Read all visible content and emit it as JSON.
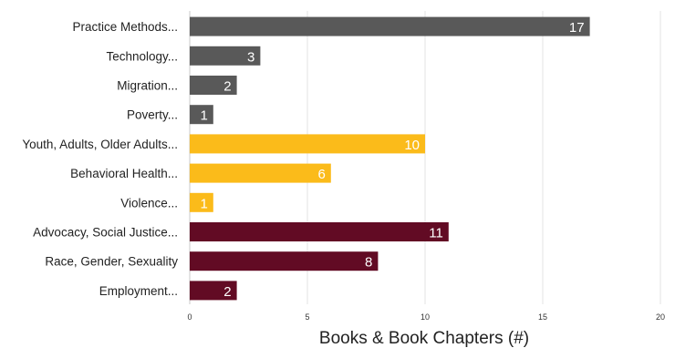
{
  "chart_data": {
    "type": "bar",
    "orientation": "horizontal",
    "categories": [
      "Practice Methods...",
      "Technology...",
      "Migration...",
      "Poverty...",
      "Youth, Adults, Older Adults...",
      "Behavioral Health...",
      "Violence...",
      "Advocacy, Social Justice...",
      "Race, Gender, Sexuality",
      "Employment..."
    ],
    "values": [
      17,
      3,
      2,
      1,
      10,
      6,
      1,
      11,
      8,
      2
    ],
    "bar_colors": [
      "#595959",
      "#595959",
      "#595959",
      "#595959",
      "#fbbb1a",
      "#fbbb1a",
      "#fbbb1a",
      "#620b24",
      "#620b24",
      "#620b24"
    ],
    "xlabel": "Books & Book Chapters (#)",
    "ylabel": "",
    "xlim": [
      0,
      20
    ],
    "xticks": [
      0,
      5,
      10,
      15,
      20
    ],
    "grid": true,
    "data_labels": true
  }
}
